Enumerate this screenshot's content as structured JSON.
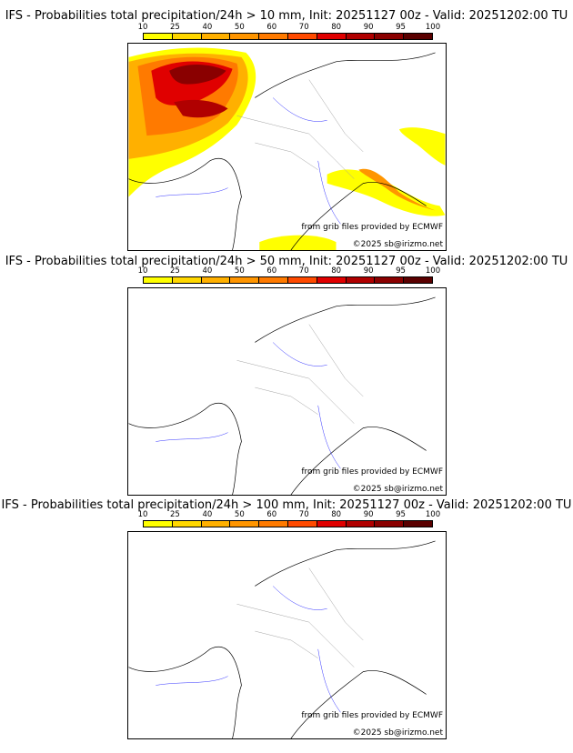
{
  "panels": [
    {
      "title": "IFS - Probabilities total precipitation/24h > 10 mm, Init: 20251127 00z - Valid: 20251202:00 TU"
    },
    {
      "title": "IFS - Probabilities total precipitation/24h > 50 mm, Init: 20251127 00z - Valid: 20251202:00 TU"
    },
    {
      "title": "IFS - Probabilities total precipitation/24h > 100 mm, Init: 20251127 00z - Valid: 20251202:00 TU"
    }
  ],
  "colorbar": {
    "ticks": [
      "10",
      "25",
      "40",
      "50",
      "60",
      "70",
      "80",
      "90",
      "95",
      "100"
    ],
    "colors": [
      "#ffff00",
      "#ffd700",
      "#ffb000",
      "#ff9500",
      "#ff7a00",
      "#ff4a00",
      "#e00000",
      "#b00000",
      "#8a0000",
      "#5a0000"
    ]
  },
  "credits": {
    "source": "from grib files provided by ECMWF",
    "copyright": "©2025 sb@irizmo.net"
  }
}
